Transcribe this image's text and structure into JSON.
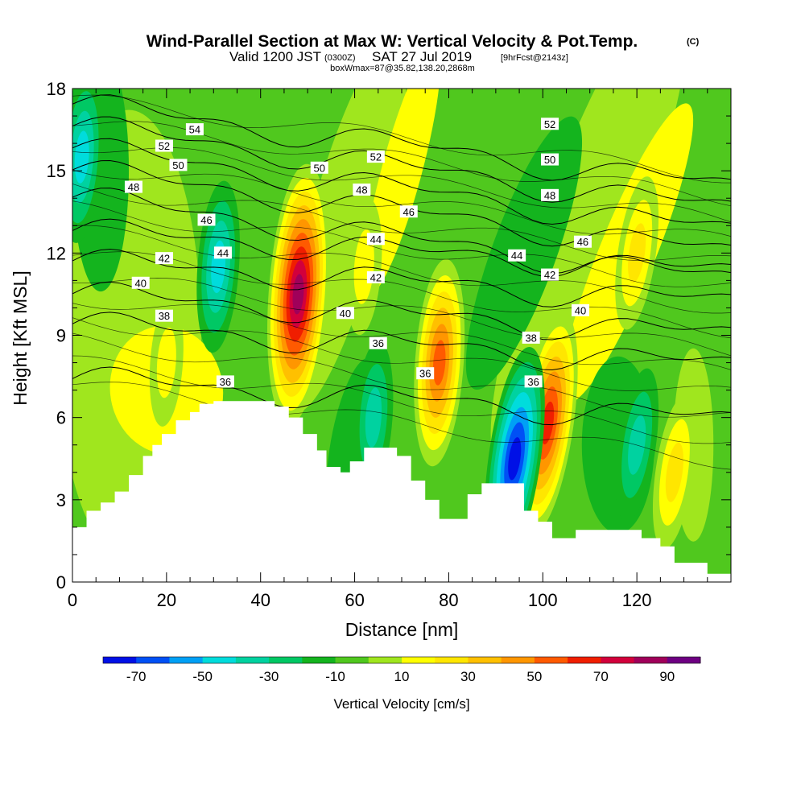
{
  "header": {
    "title_main": "Wind-Parallel Section at Max W: Vertical Velocity & Pot.Temp.",
    "title_copyright": "(C)",
    "sub_valid": "Valid 1200 JST",
    "sub_utc": "(0300Z)",
    "sub_date": "SAT 27 Jul 2019",
    "sub_fcst": "[9hrFcst@2143z]",
    "sub_box": "boxWmax=87@35.82,138.20,2868m"
  },
  "colorbar": {
    "title": "Vertical Velocity [cm/s]",
    "levels": [
      -70,
      -60,
      -50,
      -40,
      -30,
      -20,
      -10,
      0,
      10,
      20,
      30,
      40,
      50,
      60,
      70,
      80,
      90,
      100
    ],
    "colors": [
      "#0010e6",
      "#0050f5",
      "#00a0f5",
      "#00dcdc",
      "#00d2a0",
      "#00c864",
      "#14b41e",
      "#50c81e",
      "#a0e61e",
      "#ffff00",
      "#ffe600",
      "#ffc000",
      "#ff9600",
      "#ff5a00",
      "#f01e00",
      "#d2003c",
      "#a0005a",
      "#6e0082"
    ],
    "tick_labels": [
      "-70",
      "-50",
      "-30",
      "-10",
      "10",
      "30",
      "50",
      "70",
      "90"
    ]
  },
  "chart_data": {
    "type": "heatmap",
    "title": "Wind-Parallel Section at Max W: Vertical Velocity & Pot.Temp.",
    "xlabel": "Distance [nm]",
    "ylabel": "Height [Kft MSL]",
    "xlim": [
      0,
      140
    ],
    "ylim": [
      0,
      18
    ],
    "x_ticks": [
      0,
      20,
      40,
      60,
      80,
      100,
      120
    ],
    "y_ticks": [
      0,
      3,
      6,
      9,
      12,
      15,
      18
    ],
    "x_tick_labels": [
      "0",
      "20",
      "40",
      "60",
      "80",
      "100",
      "120"
    ],
    "y_tick_labels": [
      "0",
      "3",
      "6",
      "9",
      "12",
      "15",
      "18"
    ],
    "terrain_kft": [
      [
        0,
        2.0
      ],
      [
        3,
        2.6
      ],
      [
        6,
        2.9
      ],
      [
        9,
        3.3
      ],
      [
        12,
        3.9
      ],
      [
        15,
        4.6
      ],
      [
        17,
        5.0
      ],
      [
        19,
        5.4
      ],
      [
        22,
        5.9
      ],
      [
        25,
        6.2
      ],
      [
        27,
        6.5
      ],
      [
        30,
        6.6
      ],
      [
        35,
        6.6
      ],
      [
        40,
        6.6
      ],
      [
        43,
        6.4
      ],
      [
        46,
        6.0
      ],
      [
        49,
        5.4
      ],
      [
        52,
        4.8
      ],
      [
        54,
        4.2
      ],
      [
        57,
        4.0
      ],
      [
        59,
        4.4
      ],
      [
        62,
        4.9
      ],
      [
        66,
        4.9
      ],
      [
        69,
        4.6
      ],
      [
        72,
        3.7
      ],
      [
        75,
        3.0
      ],
      [
        78,
        2.3
      ],
      [
        81,
        2.3
      ],
      [
        84,
        3.2
      ],
      [
        87,
        3.6
      ],
      [
        93,
        3.6
      ],
      [
        96,
        2.6
      ],
      [
        99,
        2.2
      ],
      [
        102,
        1.6
      ],
      [
        107,
        1.9
      ],
      [
        118,
        1.9
      ],
      [
        121,
        1.6
      ],
      [
        125,
        1.3
      ],
      [
        128,
        0.7
      ],
      [
        133,
        0.7
      ],
      [
        135,
        0.3
      ],
      [
        138,
        0.3
      ]
    ],
    "w_features": [
      {
        "x": 48,
        "y": 10.5,
        "w": 90
      },
      {
        "x": 78,
        "y": 8.0,
        "w": 60
      },
      {
        "x": 101,
        "y": 5.8,
        "w": 70
      },
      {
        "x": 94,
        "y": 4.5,
        "w": -70
      },
      {
        "x": 31,
        "y": 11.5,
        "w": -40
      },
      {
        "x": 2,
        "y": 15.5,
        "w": -40
      },
      {
        "x": 120,
        "y": 5.0,
        "w": -30
      },
      {
        "x": 64,
        "y": 6.0,
        "w": -30
      },
      {
        "x": 120,
        "y": 12.0,
        "w": 30
      },
      {
        "x": 62,
        "y": 11.5,
        "w": 20
      },
      {
        "x": 20,
        "y": 8.0,
        "w": 15
      },
      {
        "x": 128,
        "y": 4.0,
        "w": 30
      }
    ],
    "theta_isentropes_K": [
      {
        "label": "36",
        "value": 36
      },
      {
        "label": "38",
        "value": 38
      },
      {
        "label": "40",
        "value": 40
      },
      {
        "label": "42",
        "value": 42
      },
      {
        "label": "44",
        "value": 44
      },
      {
        "label": "46",
        "value": 46
      },
      {
        "label": "48",
        "value": 48
      },
      {
        "label": "50",
        "value": 50
      },
      {
        "label": "52",
        "value": 52
      },
      {
        "label": "54",
        "value": 54
      }
    ],
    "theta_labels": [
      {
        "text": "54",
        "x": 26,
        "y": 16.5
      },
      {
        "text": "52",
        "x": 19.5,
        "y": 15.9
      },
      {
        "text": "50",
        "x": 22.5,
        "y": 15.2
      },
      {
        "text": "48",
        "x": 13,
        "y": 14.4
      },
      {
        "text": "46",
        "x": 28.5,
        "y": 13.2
      },
      {
        "text": "44",
        "x": 32,
        "y": 12.0
      },
      {
        "text": "42",
        "x": 19.5,
        "y": 11.8
      },
      {
        "text": "40",
        "x": 14.5,
        "y": 10.9
      },
      {
        "text": "38",
        "x": 19.5,
        "y": 9.7
      },
      {
        "text": "36",
        "x": 32.5,
        "y": 7.3
      },
      {
        "text": "50",
        "x": 52.5,
        "y": 15.1
      },
      {
        "text": "52",
        "x": 64.5,
        "y": 15.5
      },
      {
        "text": "48",
        "x": 61.5,
        "y": 14.3
      },
      {
        "text": "46",
        "x": 71.5,
        "y": 13.5
      },
      {
        "text": "44",
        "x": 64.5,
        "y": 12.5
      },
      {
        "text": "42",
        "x": 64.5,
        "y": 11.1
      },
      {
        "text": "40",
        "x": 58,
        "y": 9.8
      },
      {
        "text": "36",
        "x": 65,
        "y": 8.7
      },
      {
        "text": "36",
        "x": 75,
        "y": 7.6
      },
      {
        "text": "52",
        "x": 101.5,
        "y": 16.7
      },
      {
        "text": "50",
        "x": 101.5,
        "y": 15.4
      },
      {
        "text": "48",
        "x": 101.5,
        "y": 14.1
      },
      {
        "text": "46",
        "x": 108.5,
        "y": 12.4
      },
      {
        "text": "44",
        "x": 94.5,
        "y": 11.9
      },
      {
        "text": "42",
        "x": 101.5,
        "y": 11.2
      },
      {
        "text": "40",
        "x": 108,
        "y": 9.9
      },
      {
        "text": "38",
        "x": 97.5,
        "y": 8.9
      },
      {
        "text": "36",
        "x": 98,
        "y": 7.3
      }
    ]
  }
}
